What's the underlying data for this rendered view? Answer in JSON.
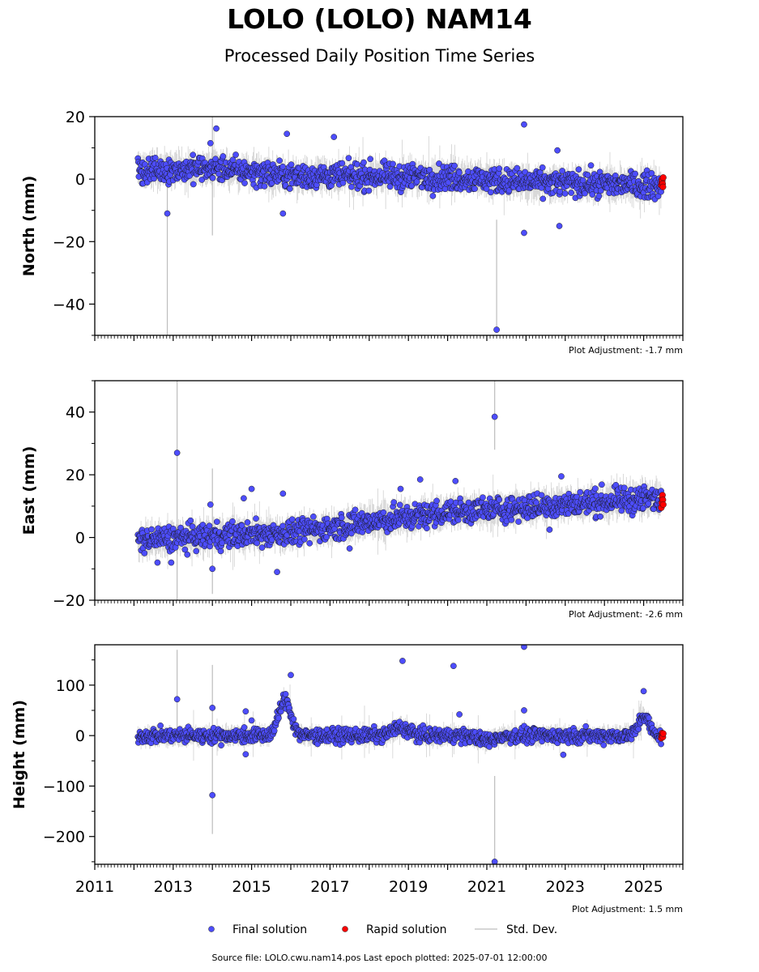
{
  "header": {
    "title": "LOLO (LOLO) NAM14",
    "subtitle": "Processed Daily Position Time Series"
  },
  "footer": {
    "source_note": "Source file: LOLO.cwu.nam14.pos  Last epoch plotted: 2025-07-01 12:00:00"
  },
  "legend": {
    "placement": "bottom-center",
    "items": [
      {
        "label": "Final solution",
        "color": "#4d4dff",
        "kind": "marker"
      },
      {
        "label": "Rapid solution",
        "color": "#ff0000",
        "kind": "marker"
      },
      {
        "label": "Std. Dev.",
        "color": "#c8c8c8",
        "kind": "line"
      }
    ]
  },
  "colors": {
    "final": "#4d4dff",
    "rapid": "#ff0000",
    "stddev": "#bdbdbd",
    "marker_edge": "#1a1a1a"
  },
  "chart_data": [
    {
      "type": "scatter",
      "ylabel": "North (mm)",
      "ylim": [
        -50,
        20
      ],
      "yticks": [
        20,
        0,
        -20,
        -40
      ],
      "ytick_labels": [
        "20",
        "0",
        "−20",
        "−40"
      ],
      "xlim": [
        2011,
        2026
      ],
      "xtick_labels_shown": false,
      "adjustment": "Plot Adjustment: -1.7 mm",
      "final_solution": {
        "time_span": [
          2012.1,
          2025.45
        ],
        "trend_knots": [
          [
            2012.1,
            2.5
          ],
          [
            2014.0,
            3.5
          ],
          [
            2016.0,
            1.0
          ],
          [
            2018.0,
            1.0
          ],
          [
            2020.0,
            0.5
          ],
          [
            2022.0,
            -1.0
          ],
          [
            2025.45,
            -2.0
          ]
        ],
        "scatter_sigma": 2.0,
        "outliers": [
          [
            2012.85,
            -11
          ],
          [
            2013.95,
            11.5
          ],
          [
            2014.1,
            16.2
          ],
          [
            2015.8,
            -11
          ],
          [
            2015.9,
            14.5
          ],
          [
            2017.1,
            13.5
          ],
          [
            2021.25,
            -48.2
          ],
          [
            2021.95,
            17.5
          ],
          [
            2021.95,
            -17.2
          ],
          [
            2022.8,
            9.2
          ],
          [
            2022.85,
            -15
          ]
        ]
      },
      "rapid_solution": {
        "time_span": [
          2025.45,
          2025.5
        ],
        "values": [
          -2.0,
          -1.0,
          0.0,
          -0.5,
          -1.5,
          -2.5,
          0.5
        ]
      },
      "stddev_spikes": [
        [
          2012.85,
          3,
          -50
        ],
        [
          2014.0,
          20,
          -18
        ],
        [
          2021.25,
          -13,
          -48
        ]
      ]
    },
    {
      "type": "scatter",
      "ylabel": "East (mm)",
      "ylim": [
        -20,
        50
      ],
      "yticks": [
        40,
        20,
        0,
        -20
      ],
      "ytick_labels": [
        "40",
        "20",
        "0",
        "−20"
      ],
      "xlim": [
        2011,
        2026
      ],
      "xtick_labels_shown": false,
      "adjustment": "Plot Adjustment: -2.6 mm",
      "final_solution": {
        "time_span": [
          2012.1,
          2025.45
        ],
        "trend_knots": [
          [
            2012.1,
            -1.0
          ],
          [
            2014.0,
            0.5
          ],
          [
            2016.0,
            1.5
          ],
          [
            2018.0,
            5.0
          ],
          [
            2020.0,
            8.0
          ],
          [
            2022.0,
            9.5
          ],
          [
            2024.0,
            11.5
          ],
          [
            2025.45,
            12.5
          ]
        ],
        "scatter_sigma": 2.0,
        "outliers": [
          [
            2012.6,
            -8
          ],
          [
            2012.95,
            -8
          ],
          [
            2013.1,
            27
          ],
          [
            2013.95,
            10.5
          ],
          [
            2014.0,
            -10
          ],
          [
            2014.8,
            12.5
          ],
          [
            2015.0,
            15.5
          ],
          [
            2015.65,
            -11
          ],
          [
            2015.8,
            14
          ],
          [
            2017.5,
            -3.5
          ],
          [
            2018.8,
            15.5
          ],
          [
            2019.3,
            18.5
          ],
          [
            2020.2,
            18
          ],
          [
            2021.2,
            38.5
          ],
          [
            2022.6,
            2.5
          ],
          [
            2022.9,
            19.5
          ]
        ]
      },
      "rapid_solution": {
        "time_span": [
          2025.45,
          2025.5
        ],
        "values": [
          9.5,
          11.0,
          12.5,
          13.5,
          12.0,
          10.5
        ]
      },
      "stddev_spikes": [
        [
          2013.1,
          50,
          -20
        ],
        [
          2014.0,
          22,
          -18
        ],
        [
          2021.2,
          50,
          28
        ]
      ]
    },
    {
      "type": "scatter",
      "ylabel": "Height (mm)",
      "ylim": [
        -255,
        180
      ],
      "yticks": [
        100,
        0,
        -100,
        -200
      ],
      "ytick_labels": [
        "100",
        "0",
        "−100",
        "−200"
      ],
      "xlim": [
        2011,
        2026
      ],
      "xticks": [
        2011,
        2013,
        2015,
        2017,
        2019,
        2021,
        2023,
        2025
      ],
      "xtick_labels": [
        "2011",
        "2013",
        "2015",
        "2017",
        "2019",
        "2021",
        "2023",
        "2025"
      ],
      "xtick_labels_shown": true,
      "adjustment": "Plot Adjustment: 1.5 mm",
      "final_solution": {
        "time_span": [
          2012.1,
          2025.45
        ],
        "trend_knots": [
          [
            2012.1,
            0
          ],
          [
            2025.45,
            0
          ]
        ],
        "scatter_sigma": 7,
        "bumps": [
          [
            2015.85,
            70,
            0.22
          ],
          [
            2025.0,
            40,
            0.18
          ],
          [
            2018.8,
            15,
            0.3
          ],
          [
            2021.0,
            -10,
            0.3
          ]
        ],
        "outliers": [
          [
            2013.1,
            72
          ],
          [
            2014.0,
            -118
          ],
          [
            2014.0,
            55
          ],
          [
            2014.85,
            48
          ],
          [
            2014.85,
            -37
          ],
          [
            2015.0,
            30
          ],
          [
            2016.0,
            120
          ],
          [
            2018.85,
            148
          ],
          [
            2020.15,
            138
          ],
          [
            2020.3,
            42
          ],
          [
            2021.2,
            -250
          ],
          [
            2021.95,
            176
          ],
          [
            2021.95,
            50
          ],
          [
            2022.95,
            -38
          ],
          [
            2025.0,
            88
          ]
        ]
      },
      "rapid_solution": {
        "time_span": [
          2025.45,
          2025.5
        ],
        "values": [
          -5,
          0,
          5,
          2,
          -3,
          4
        ]
      },
      "stddev_spikes": [
        [
          2013.1,
          170,
          -10
        ],
        [
          2014.0,
          140,
          -195
        ],
        [
          2021.2,
          -80,
          -255
        ]
      ]
    }
  ]
}
